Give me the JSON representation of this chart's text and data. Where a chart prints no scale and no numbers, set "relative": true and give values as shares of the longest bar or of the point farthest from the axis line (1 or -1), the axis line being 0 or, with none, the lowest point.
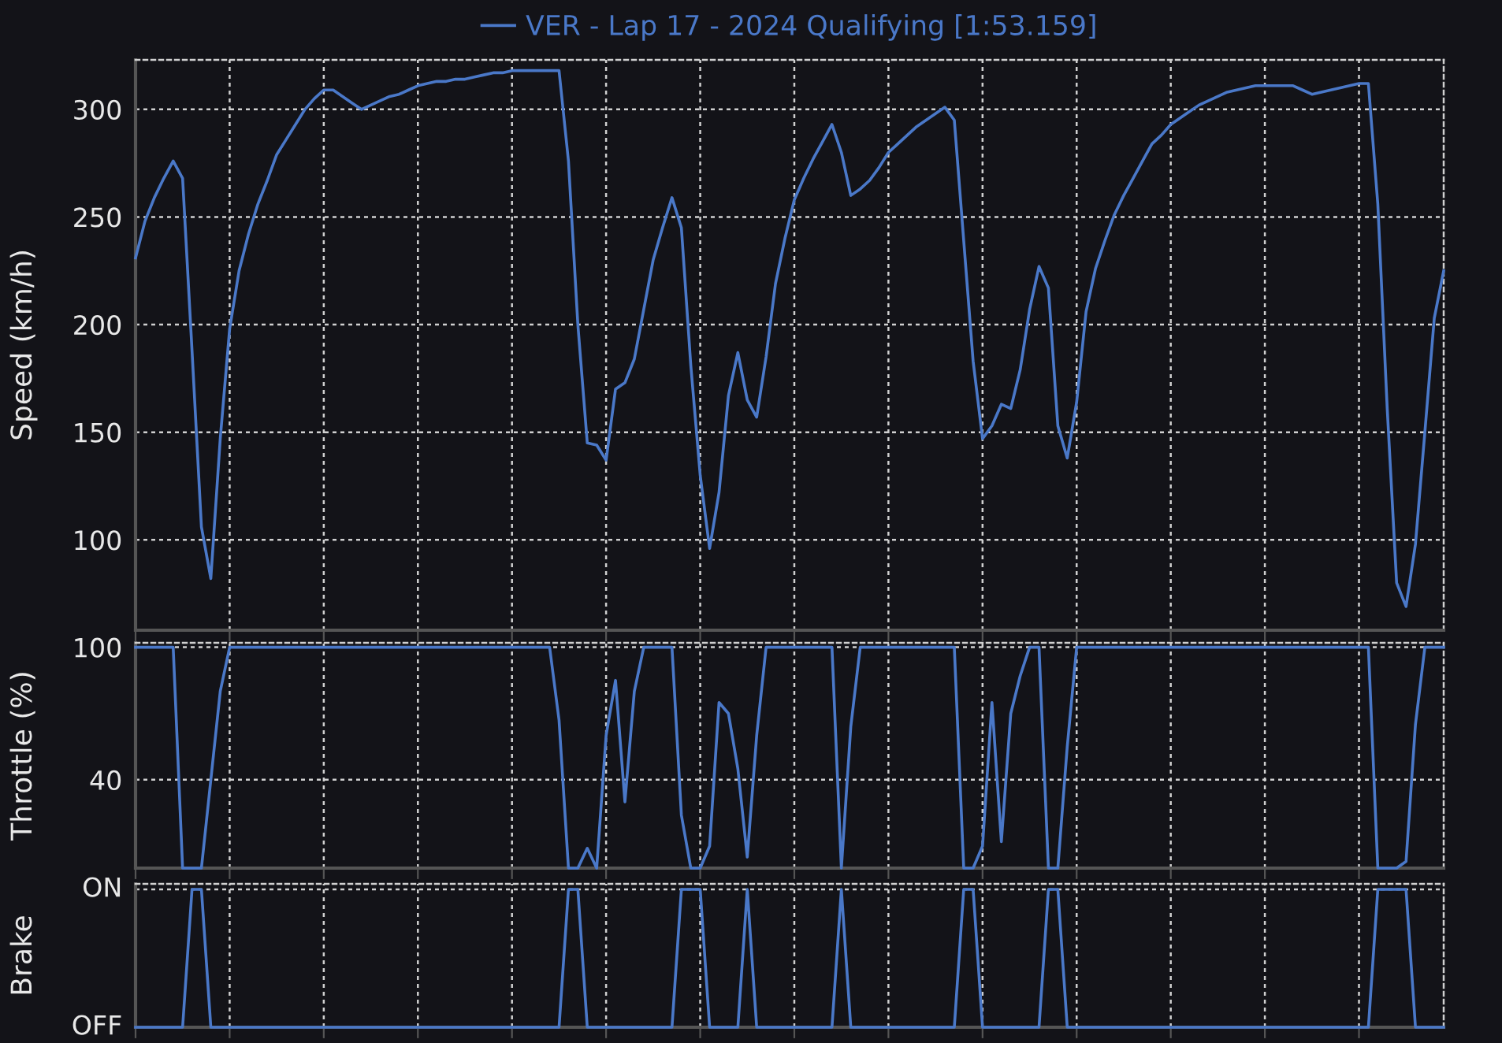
{
  "chart_data": [
    {
      "type": "line",
      "ylabel": "Speed (km/h)",
      "legend": "top",
      "grid": true,
      "tick_labels": "y",
      "ylim": [
        58,
        323
      ],
      "yticks": [
        100,
        150,
        200,
        250,
        300
      ],
      "categories": [
        null,
        null,
        null,
        null,
        null,
        null,
        null,
        null,
        null,
        null,
        null,
        null,
        null,
        null,
        null,
        null,
        null,
        null,
        null,
        null,
        null,
        null,
        null,
        null,
        null,
        null,
        null,
        null,
        null,
        null,
        null,
        null,
        null,
        null,
        null,
        null,
        null,
        null,
        null,
        null,
        null,
        null,
        null,
        null,
        null,
        null,
        null,
        null,
        null,
        null,
        null,
        null,
        null,
        null,
        null,
        null,
        null,
        null,
        null,
        null,
        null,
        null,
        null,
        null,
        null,
        null,
        null,
        null,
        null,
        null,
        null,
        null,
        null,
        null,
        null,
        null,
        null,
        null,
        null,
        null,
        null,
        null,
        null,
        null,
        null,
        null,
        null,
        null,
        null,
        null,
        null,
        null,
        null,
        null,
        null,
        null,
        null,
        null,
        null,
        null,
        null,
        null,
        null,
        null,
        null,
        null,
        null,
        null,
        null,
        null,
        null,
        null,
        null,
        null,
        null,
        null,
        null,
        null,
        null,
        null,
        null,
        null,
        null,
        null,
        null,
        null,
        null,
        null,
        null,
        null,
        null,
        null,
        null,
        null,
        null,
        null,
        null,
        null,
        null,
        null
      ],
      "series": [
        {
          "name": "VER - Lap 17 - 2024 Qualifying [1:53.159]",
          "color": "#4a78c8",
          "values": [
            231,
            248,
            259,
            268,
            276,
            268,
            188,
            106,
            82,
            147,
            198,
            225,
            242,
            256,
            267,
            279,
            286,
            293,
            300,
            305,
            309,
            309,
            306,
            303,
            300,
            302,
            304,
            306,
            307,
            309,
            311,
            312,
            313,
            313,
            314,
            314,
            315,
            316,
            317,
            317,
            318,
            318,
            318,
            318,
            318,
            318,
            276,
            200,
            145,
            144,
            137,
            170,
            173,
            184,
            207,
            230,
            245,
            259,
            245,
            181,
            130,
            96,
            122,
            167,
            187,
            165,
            157,
            185,
            219,
            240,
            258,
            268,
            277,
            285,
            293,
            280,
            260,
            263,
            267,
            273,
            280,
            284,
            288,
            292,
            295,
            298,
            301,
            295,
            239,
            183,
            147,
            153,
            163,
            161,
            179,
            207,
            227,
            217,
            153,
            138,
            164,
            206,
            226,
            239,
            251,
            260,
            268,
            276,
            284,
            288,
            293,
            296,
            299,
            302,
            304,
            306,
            308,
            309,
            310,
            311,
            311,
            311,
            311,
            311,
            309,
            307,
            308,
            309,
            310,
            311,
            312,
            312,
            256,
            161,
            80,
            69,
            98,
            150,
            203,
            225
          ]
        }
      ]
    },
    {
      "type": "line",
      "ylabel": "Throttle (%)",
      "grid": true,
      "tick_labels": "y",
      "ylim": [
        0,
        102
      ],
      "yticks": [
        40,
        100
      ],
      "categories": [
        null,
        null,
        null,
        null,
        null,
        null,
        null,
        null,
        null,
        null,
        null,
        null,
        null,
        null,
        null,
        null,
        null,
        null,
        null,
        null,
        null,
        null,
        null,
        null,
        null,
        null,
        null,
        null,
        null,
        null,
        null,
        null,
        null,
        null,
        null,
        null,
        null,
        null,
        null,
        null,
        null,
        null,
        null,
        null,
        null,
        null,
        null,
        null,
        null,
        null,
        null,
        null,
        null,
        null,
        null,
        null,
        null,
        null,
        null,
        null,
        null,
        null,
        null,
        null,
        null,
        null,
        null,
        null,
        null,
        null,
        null,
        null,
        null,
        null,
        null,
        null,
        null,
        null,
        null,
        null,
        null,
        null,
        null,
        null,
        null,
        null,
        null,
        null,
        null,
        null,
        null,
        null,
        null,
        null,
        null,
        null,
        null,
        null,
        null,
        null,
        null,
        null,
        null,
        null,
        null,
        null,
        null,
        null,
        null,
        null,
        null,
        null,
        null,
        null,
        null,
        null,
        null,
        null,
        null,
        null,
        null,
        null,
        null,
        null,
        null,
        null,
        null,
        null,
        null,
        null,
        null,
        null,
        null,
        null,
        null,
        null,
        null,
        null,
        null,
        null
      ],
      "series": [
        {
          "color": "#4a78c8",
          "values": [
            100,
            100,
            100,
            100,
            100,
            0,
            0,
            0,
            40,
            80,
            100,
            100,
            100,
            100,
            100,
            100,
            100,
            100,
            100,
            100,
            100,
            100,
            100,
            100,
            100,
            100,
            100,
            100,
            100,
            100,
            100,
            100,
            100,
            100,
            100,
            100,
            100,
            100,
            100,
            100,
            100,
            100,
            100,
            100,
            100,
            67,
            0,
            0,
            9,
            0,
            60,
            85,
            30,
            80,
            100,
            100,
            100,
            100,
            24,
            0,
            0,
            10,
            75,
            70,
            45,
            5,
            60,
            100,
            100,
            100,
            100,
            100,
            100,
            100,
            100,
            0,
            64,
            100,
            100,
            100,
            100,
            100,
            100,
            100,
            100,
            100,
            100,
            100,
            0,
            0,
            10,
            75,
            12,
            70,
            87,
            100,
            100,
            0,
            0,
            55,
            100,
            100,
            100,
            100,
            100,
            100,
            100,
            100,
            100,
            100,
            100,
            100,
            100,
            100,
            100,
            100,
            100,
            100,
            100,
            100,
            100,
            100,
            100,
            100,
            100,
            100,
            100,
            100,
            100,
            100,
            100,
            100,
            0,
            0,
            0,
            3,
            65,
            100,
            100,
            100
          ]
        }
      ]
    },
    {
      "type": "line",
      "ylabel": "Brake",
      "grid": true,
      "tick_labels": "y",
      "relative": true,
      "annotations": [
        "ON",
        "OFF"
      ],
      "categories": [
        null,
        null,
        null,
        null,
        null,
        null,
        null,
        null,
        null,
        null,
        null,
        null,
        null,
        null,
        null,
        null,
        null,
        null,
        null,
        null,
        null,
        null,
        null,
        null,
        null,
        null,
        null,
        null,
        null,
        null,
        null,
        null,
        null,
        null,
        null,
        null,
        null,
        null,
        null,
        null,
        null,
        null,
        null,
        null,
        null,
        null,
        null,
        null,
        null,
        null,
        null,
        null,
        null,
        null,
        null,
        null,
        null,
        null,
        null,
        null,
        null,
        null,
        null,
        null,
        null,
        null,
        null,
        null,
        null,
        null,
        null,
        null,
        null,
        null,
        null,
        null,
        null,
        null,
        null,
        null,
        null,
        null,
        null,
        null,
        null,
        null,
        null,
        null,
        null,
        null,
        null,
        null,
        null,
        null,
        null,
        null,
        null,
        null,
        null,
        null,
        null,
        null,
        null,
        null,
        null,
        null,
        null,
        null,
        null,
        null,
        null,
        null,
        null,
        null,
        null,
        null,
        null,
        null,
        null,
        null,
        null,
        null,
        null,
        null,
        null,
        null,
        null,
        null,
        null,
        null,
        null,
        null,
        null,
        null,
        null,
        null,
        null,
        null,
        null,
        null
      ],
      "series": [
        {
          "color": "#4a78c8",
          "values": [
            0,
            0,
            0,
            0,
            0,
            0,
            1,
            1,
            0,
            0,
            0,
            0,
            0,
            0,
            0,
            0,
            0,
            0,
            0,
            0,
            0,
            0,
            0,
            0,
            0,
            0,
            0,
            0,
            0,
            0,
            0,
            0,
            0,
            0,
            0,
            0,
            0,
            0,
            0,
            0,
            0,
            0,
            0,
            0,
            0,
            0,
            1,
            1,
            0,
            0,
            0,
            0,
            0,
            0,
            0,
            0,
            0,
            0,
            1,
            1,
            1,
            0,
            0,
            0,
            0,
            1,
            0,
            0,
            0,
            0,
            0,
            0,
            0,
            0,
            0,
            1,
            0,
            0,
            0,
            0,
            0,
            0,
            0,
            0,
            0,
            0,
            0,
            0,
            1,
            1,
            0,
            0,
            0,
            0,
            0,
            0,
            0,
            1,
            1,
            0,
            0,
            0,
            0,
            0,
            0,
            0,
            0,
            0,
            0,
            0,
            0,
            0,
            0,
            0,
            0,
            0,
            0,
            0,
            0,
            0,
            0,
            0,
            0,
            0,
            0,
            0,
            0,
            0,
            0,
            0,
            0,
            0,
            1,
            1,
            1,
            1,
            0,
            0,
            0,
            0
          ]
        }
      ]
    }
  ]
}
